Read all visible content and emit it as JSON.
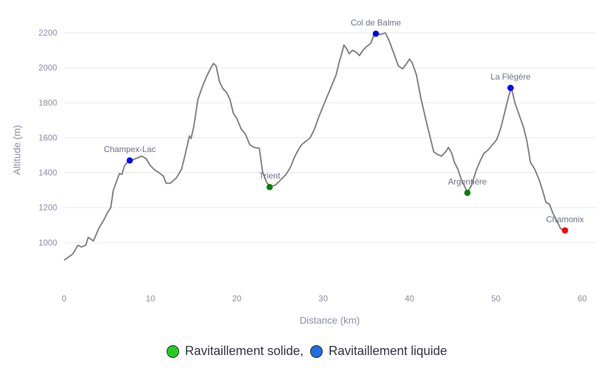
{
  "chart_data": {
    "type": "line",
    "title": "",
    "xlabel": "Distance (km)",
    "ylabel": "Altitude (m)",
    "xlim": [
      0,
      61.5
    ],
    "ylim": [
      800,
      2300
    ],
    "xticks": [
      0,
      10,
      20,
      30,
      40,
      50,
      60
    ],
    "yticks": [
      1000,
      1200,
      1400,
      1600,
      1800,
      2000,
      2200
    ],
    "grid": true,
    "line_color": "#808080",
    "series": [
      {
        "values": [
          [
            0,
            900
          ],
          [
            1,
            935
          ],
          [
            1.6,
            985
          ],
          [
            2,
            975
          ],
          [
            2.5,
            985
          ],
          [
            2.8,
            1030
          ],
          [
            3.4,
            1010
          ],
          [
            4,
            1080
          ],
          [
            4.6,
            1130
          ],
          [
            5,
            1170
          ],
          [
            5.4,
            1200
          ],
          [
            5.7,
            1300
          ],
          [
            6,
            1340
          ],
          [
            6.4,
            1395
          ],
          [
            6.7,
            1390
          ],
          [
            7,
            1440
          ],
          [
            7.5,
            1470
          ],
          [
            8,
            1475
          ],
          [
            8.5,
            1485
          ],
          [
            9,
            1495
          ],
          [
            9.5,
            1480
          ],
          [
            10,
            1440
          ],
          [
            10.5,
            1415
          ],
          [
            11,
            1400
          ],
          [
            11.5,
            1380
          ],
          [
            11.8,
            1340
          ],
          [
            12.3,
            1340
          ],
          [
            13,
            1370
          ],
          [
            13.6,
            1420
          ],
          [
            14,
            1500
          ],
          [
            14.5,
            1610
          ],
          [
            14.7,
            1595
          ],
          [
            15,
            1660
          ],
          [
            15.5,
            1820
          ],
          [
            16,
            1890
          ],
          [
            16.5,
            1950
          ],
          [
            17,
            2000
          ],
          [
            17.3,
            2025
          ],
          [
            17.6,
            2010
          ],
          [
            18,
            1920
          ],
          [
            18.4,
            1880
          ],
          [
            18.8,
            1860
          ],
          [
            19.2,
            1820
          ],
          [
            19.6,
            1740
          ],
          [
            20,
            1710
          ],
          [
            20.5,
            1650
          ],
          [
            21,
            1620
          ],
          [
            21.5,
            1560
          ],
          [
            22,
            1545
          ],
          [
            22.6,
            1540
          ],
          [
            23,
            1400
          ],
          [
            23.5,
            1340
          ],
          [
            23.9,
            1320
          ],
          [
            24.5,
            1330
          ],
          [
            25.3,
            1370
          ],
          [
            25.7,
            1390
          ],
          [
            26.2,
            1430
          ],
          [
            26.6,
            1480
          ],
          [
            27,
            1520
          ],
          [
            27.5,
            1560
          ],
          [
            28,
            1580
          ],
          [
            28.5,
            1600
          ],
          [
            29,
            1650
          ],
          [
            29.5,
            1720
          ],
          [
            30,
            1780
          ],
          [
            30.5,
            1840
          ],
          [
            31,
            1900
          ],
          [
            31.5,
            1960
          ],
          [
            31.9,
            2040
          ],
          [
            32.2,
            2090
          ],
          [
            32.4,
            2130
          ],
          [
            32.7,
            2110
          ],
          [
            33,
            2080
          ],
          [
            33.4,
            2100
          ],
          [
            33.8,
            2090
          ],
          [
            34.2,
            2070
          ],
          [
            34.6,
            2100
          ],
          [
            35,
            2120
          ],
          [
            35.5,
            2140
          ],
          [
            35.9,
            2190
          ],
          [
            36.2,
            2200
          ],
          [
            36.6,
            2190
          ],
          [
            37.2,
            2200
          ],
          [
            37.6,
            2160
          ],
          [
            38.2,
            2080
          ],
          [
            38.7,
            2010
          ],
          [
            39.2,
            1995
          ],
          [
            39.6,
            2020
          ],
          [
            40,
            2050
          ],
          [
            40.3,
            2030
          ],
          [
            40.8,
            1960
          ],
          [
            41.3,
            1830
          ],
          [
            41.9,
            1700
          ],
          [
            42.5,
            1580
          ],
          [
            42.8,
            1520
          ],
          [
            43.2,
            1505
          ],
          [
            43.7,
            1495
          ],
          [
            44.2,
            1520
          ],
          [
            44.5,
            1545
          ],
          [
            44.9,
            1510
          ],
          [
            45.2,
            1460
          ],
          [
            45.6,
            1420
          ],
          [
            46,
            1360
          ],
          [
            46.4,
            1320
          ],
          [
            46.7,
            1285
          ],
          [
            47.2,
            1330
          ],
          [
            47.7,
            1410
          ],
          [
            48.2,
            1470
          ],
          [
            48.6,
            1510
          ],
          [
            49.1,
            1530
          ],
          [
            49.6,
            1560
          ],
          [
            50.1,
            1590
          ],
          [
            50.6,
            1660
          ],
          [
            51.1,
            1760
          ],
          [
            51.5,
            1840
          ],
          [
            51.8,
            1885
          ],
          [
            52.2,
            1800
          ],
          [
            52.7,
            1730
          ],
          [
            53.2,
            1660
          ],
          [
            53.6,
            1580
          ],
          [
            54,
            1460
          ],
          [
            54.5,
            1420
          ],
          [
            55,
            1360
          ],
          [
            55.4,
            1300
          ],
          [
            55.8,
            1230
          ],
          [
            56.2,
            1220
          ],
          [
            56.6,
            1170
          ],
          [
            57,
            1130
          ],
          [
            57.5,
            1080
          ],
          [
            58,
            1070
          ]
        ]
      }
    ],
    "points": [
      {
        "name": "Champex-Lac",
        "x": 7.6,
        "y": 1470,
        "color": "#0000ff",
        "label_dx": 0,
        "label_dy": -12,
        "anchor": "middle"
      },
      {
        "name": "Trient",
        "x": 23.8,
        "y": 1318,
        "color": "#008000",
        "label_dx": 0,
        "label_dy": -12,
        "anchor": "middle"
      },
      {
        "name": "Col de Balme",
        "x": 36.1,
        "y": 2195,
        "color": "#0000ff",
        "label_dx": 0,
        "label_dy": -12,
        "anchor": "middle"
      },
      {
        "name": "Argentière",
        "x": 46.7,
        "y": 1285,
        "color": "#008000",
        "label_dx": 0,
        "label_dy": -12,
        "anchor": "middle"
      },
      {
        "name": "La Flégère",
        "x": 51.7,
        "y": 1885,
        "color": "#0000ff",
        "label_dx": 0,
        "label_dy": -12,
        "anchor": "middle"
      },
      {
        "name": "Chamonix",
        "x": 58.0,
        "y": 1070,
        "color": "#ff0000",
        "label_dx": 0,
        "label_dy": -12,
        "anchor": "middle"
      }
    ]
  },
  "legend": {
    "items": [
      {
        "label": "Ravitaillement solide,",
        "color": "#22cc22"
      },
      {
        "label": "Ravitaillement liquide",
        "color": "#1e6fe0"
      }
    ]
  }
}
